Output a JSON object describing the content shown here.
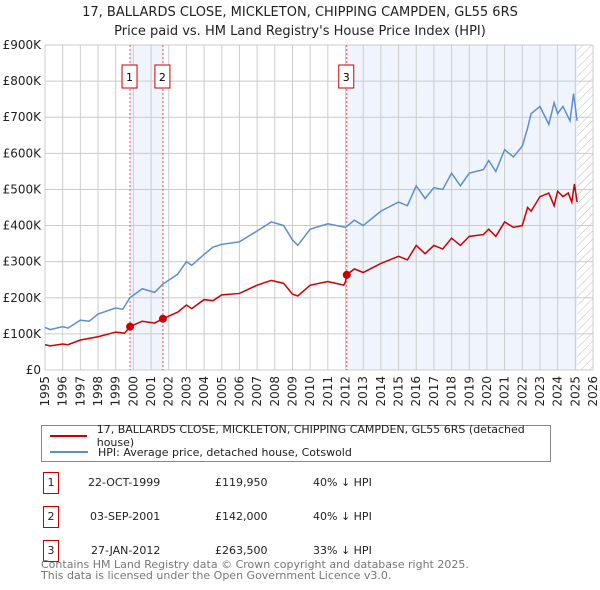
{
  "chart_data": {
    "type": "line",
    "title": "17, BALLARDS CLOSE, MICKLETON, CHIPPING CAMPDEN, GL55 6RS",
    "subtitle": "Price paid vs. HM Land Registry's House Price Index (HPI)",
    "xlim": [
      1995,
      2026
    ],
    "ylim": [
      0,
      900000
    ],
    "y_ticks": [
      {
        "v": 0,
        "label": "£0"
      },
      {
        "v": 100000,
        "label": "£100K"
      },
      {
        "v": 200000,
        "label": "£200K"
      },
      {
        "v": 300000,
        "label": "£300K"
      },
      {
        "v": 400000,
        "label": "£400K"
      },
      {
        "v": 500000,
        "label": "£500K"
      },
      {
        "v": 600000,
        "label": "£600K"
      },
      {
        "v": 700000,
        "label": "£700K"
      },
      {
        "v": 800000,
        "label": "£800K"
      },
      {
        "v": 900000,
        "label": "£900K"
      }
    ],
    "x_ticks": [
      "1995",
      "1996",
      "1997",
      "1998",
      "1999",
      "2000",
      "2001",
      "2002",
      "2003",
      "2004",
      "2005",
      "2006",
      "2007",
      "2008",
      "2009",
      "2010",
      "2011",
      "2012",
      "2013",
      "2014",
      "2015",
      "2016",
      "2017",
      "2018",
      "2019",
      "2020",
      "2021",
      "2022",
      "2023",
      "2024",
      "2025",
      "2026"
    ],
    "grid": true,
    "series": [
      {
        "name": "17, BALLARDS CLOSE, MICKLETON, CHIPPING CAMPDEN, GL55 6RS (detached house)",
        "color": "#cc0000",
        "x": [
          1995,
          1995.3,
          1996,
          1996.3,
          1997,
          1998,
          1999,
          1999.5,
          1999.8,
          2000.5,
          2001.2,
          2001.67,
          2002.5,
          2003,
          2003.3,
          2004,
          2004.5,
          2005,
          2006,
          2007,
          2007.8,
          2008.5,
          2009,
          2009.3,
          2010,
          2011,
          2011.9,
          2012.0,
          2012.07,
          2012.5,
          2013,
          2014,
          2015,
          2015.5,
          2016,
          2016.5,
          2017,
          2017.5,
          2018,
          2018.5,
          2019,
          2019.8,
          2020.1,
          2020.5,
          2021,
          2021.5,
          2022,
          2022.3,
          2022.5,
          2023,
          2023.5,
          2023.8,
          2024,
          2024.3,
          2024.6,
          2024.8,
          2024.95,
          2025.1
        ],
        "y": [
          70000,
          67000,
          72000,
          70000,
          83000,
          92000,
          105000,
          102000,
          120000,
          135000,
          130000,
          142000,
          160000,
          180000,
          170000,
          195000,
          192000,
          208000,
          212000,
          235000,
          248000,
          240000,
          210000,
          205000,
          235000,
          245000,
          235000,
          245000,
          263500,
          280000,
          270000,
          295000,
          315000,
          305000,
          345000,
          322000,
          345000,
          335000,
          365000,
          345000,
          370000,
          375000,
          390000,
          370000,
          410000,
          395000,
          400000,
          450000,
          440000,
          480000,
          490000,
          455000,
          495000,
          480000,
          490000,
          465000,
          515000,
          465000
        ]
      },
      {
        "name": "HPI: Average price, detached house, Cotswold",
        "color": "#5b8fd1",
        "x": [
          1995,
          1995.3,
          1996,
          1996.3,
          1997,
          1997.5,
          1998,
          1999,
          1999.4,
          1999.8,
          2000.5,
          2001.2,
          2001.67,
          2002.5,
          2003,
          2003.3,
          2004,
          2004.5,
          2005,
          2006,
          2007,
          2007.8,
          2008.5,
          2009,
          2009.3,
          2010,
          2011,
          2012,
          2012.5,
          2013,
          2014,
          2015,
          2015.5,
          2016,
          2016.5,
          2017,
          2017.5,
          2018,
          2018.5,
          2019,
          2019.8,
          2020.1,
          2020.5,
          2021,
          2021.5,
          2022,
          2022.3,
          2022.5,
          2023,
          2023.5,
          2023.8,
          2024,
          2024.3,
          2024.7,
          2024.9,
          2025.1
        ],
        "y": [
          118000,
          112000,
          120000,
          116000,
          138000,
          135000,
          155000,
          172000,
          168000,
          200000,
          225000,
          215000,
          238000,
          265000,
          300000,
          290000,
          320000,
          340000,
          348000,
          355000,
          385000,
          410000,
          400000,
          360000,
          345000,
          390000,
          405000,
          395000,
          415000,
          400000,
          440000,
          465000,
          455000,
          510000,
          475000,
          505000,
          500000,
          545000,
          510000,
          545000,
          555000,
          580000,
          550000,
          610000,
          590000,
          620000,
          670000,
          710000,
          730000,
          680000,
          740000,
          710000,
          730000,
          690000,
          765000,
          690000
        ]
      }
    ],
    "sales": [
      {
        "id": "1",
        "x": 1999.81,
        "price": 119950,
        "date": "22-OCT-1999",
        "price_label": "£119,950",
        "hpi": "40% ↓ HPI"
      },
      {
        "id": "2",
        "x": 2001.67,
        "price": 142000,
        "date": "03-SEP-2001",
        "price_label": "£142,000",
        "hpi": "40% ↓ HPI"
      },
      {
        "id": "3",
        "x": 2012.07,
        "price": 263500,
        "date": "27-JAN-2012",
        "price_label": "£263,500",
        "hpi": "33% ↓ HPI"
      }
    ],
    "shaded": [
      [
        1999.81,
        2001.67
      ],
      [
        2012.07,
        2025.1
      ]
    ],
    "forecast_hatch_from": 2025.1,
    "legend_placement": "bottom"
  },
  "footer": {
    "line1": "Contains HM Land Registry data © Crown copyright and database right 2025.",
    "line2": "This data is licensed under the Open Government Licence v3.0."
  }
}
